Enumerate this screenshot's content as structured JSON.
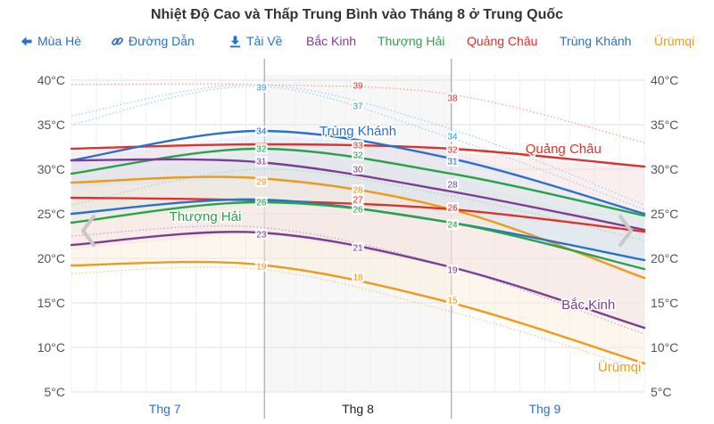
{
  "chart_data": {
    "type": "line",
    "title": "Nhiệt Độ Cao và Thấp Trung Bình vào Tháng 8 ở Trung Quốc",
    "y_unit": "°C",
    "ylim": [
      5,
      41
    ],
    "y_ticks": [
      5,
      10,
      15,
      20,
      25,
      30,
      35,
      40
    ],
    "y_tick_labels": [
      "5°C",
      "10°C",
      "15°C",
      "20°C",
      "25°C",
      "30°C",
      "35°C",
      "40°C"
    ],
    "x_range": [
      0,
      92
    ],
    "months": [
      {
        "label": "Thg 7",
        "center": 15,
        "highlight": false
      },
      {
        "label": "Thg 8",
        "center": 46,
        "highlight": true
      },
      {
        "label": "Thg 9",
        "center": 76,
        "highlight": false
      }
    ],
    "boundaries": [
      31,
      61
    ],
    "bands": [
      {
        "name": "Bắc Kinh",
        "color": "#ead8ea",
        "x": [
          0,
          30,
          61,
          92
        ],
        "high": [
          31,
          31,
          29,
          23
        ],
        "low": [
          21,
          23,
          19,
          12
        ]
      },
      {
        "name": "Quảng Châu",
        "color": "#f6dada",
        "x": [
          0,
          30,
          61,
          92
        ],
        "high": [
          32,
          33,
          32,
          30
        ],
        "low": [
          25,
          27,
          26,
          23
        ]
      },
      {
        "name": "Thượng Hải",
        "color": "#dcefdf",
        "x": [
          0,
          30,
          61,
          92
        ],
        "high": [
          29,
          32,
          30,
          25
        ],
        "low": [
          24,
          26,
          25,
          19
        ]
      },
      {
        "name": "Trùng Khánh",
        "color": "#dbe5f4",
        "x": [
          0,
          30,
          61,
          92
        ],
        "high": [
          31,
          34,
          32,
          25
        ],
        "low": [
          25,
          27,
          24,
          20
        ]
      },
      {
        "name": "Ürümqi",
        "color": "#faecd6",
        "x": [
          0,
          30,
          61,
          92
        ],
        "high": [
          28,
          29,
          26,
          18
        ],
        "low": [
          19,
          20,
          15,
          8
        ]
      }
    ],
    "records": [
      {
        "name": "Ürümqi record high",
        "color": "#f4a0a0",
        "x": [
          0,
          30,
          61,
          92
        ],
        "y": [
          39.5,
          39.5,
          38.4,
          33
        ]
      },
      {
        "name": "Trùng Khánh record high",
        "color": "#9fd3ee",
        "x": [
          0,
          30,
          61,
          92
        ],
        "y": [
          36,
          39.5,
          34.5,
          26
        ]
      },
      {
        "name": "Trùng Khánh record high 2",
        "color": "#9fd3ee",
        "x": [
          0,
          30,
          61,
          92
        ],
        "y": [
          35,
          39.3,
          33.5,
          25.5
        ]
      },
      {
        "name": "Thượng Hải record",
        "color": "#a7dab0",
        "x": [
          0,
          30,
          61,
          92
        ],
        "y": [
          26,
          30,
          27,
          22
        ]
      },
      {
        "name": "Ürümqi record low",
        "color": "#f7c98a",
        "x": [
          0,
          30,
          61,
          92
        ],
        "y": [
          18.3,
          18.8,
          14,
          7.5
        ]
      },
      {
        "name": "Bắc Kinh record low",
        "color": "#c6a6d0",
        "x": [
          0,
          30,
          61,
          92
        ],
        "y": [
          22.5,
          23.5,
          19,
          11.5
        ]
      }
    ],
    "series": [
      {
        "name": "Quảng Châu high",
        "color": "#e0312c",
        "x": [
          0,
          30,
          61,
          92
        ],
        "y": [
          32.3,
          32.8,
          32.3,
          30.3
        ]
      },
      {
        "name": "Trùng Khánh high",
        "color": "#2970cf",
        "x": [
          0,
          30,
          61,
          92
        ],
        "y": [
          31,
          34.3,
          31.2,
          25
        ]
      },
      {
        "name": "Thượng Hải high",
        "color": "#2aa24c",
        "x": [
          0,
          30,
          61,
          92
        ],
        "y": [
          29.5,
          32.3,
          29.5,
          24.8
        ]
      },
      {
        "name": "Bắc Kinh high",
        "color": "#7a3f93",
        "x": [
          0,
          30,
          61,
          92
        ],
        "y": [
          31,
          30.8,
          27.5,
          23.2
        ]
      },
      {
        "name": "Ürümqi high",
        "color": "#ef9a1b",
        "x": [
          0,
          30,
          61,
          92
        ],
        "y": [
          28.5,
          29,
          25.5,
          17.8
        ]
      },
      {
        "name": "Quảng Châu low",
        "color": "#e0312c",
        "x": [
          0,
          30,
          61,
          92
        ],
        "y": [
          26.8,
          26.5,
          25.5,
          23
        ]
      },
      {
        "name": "Trùng Khánh low",
        "color": "#2970cf",
        "x": [
          0,
          30,
          61,
          92
        ],
        "y": [
          25,
          26.6,
          24,
          19.8
        ]
      },
      {
        "name": "Thượng Hải low",
        "color": "#2aa24c",
        "x": [
          0,
          30,
          61,
          92
        ],
        "y": [
          24,
          26.3,
          24,
          18.8
        ]
      },
      {
        "name": "Bắc Kinh low",
        "color": "#7a3f93",
        "x": [
          0,
          30,
          61,
          92
        ],
        "y": [
          21.5,
          22.9,
          19,
          12.2
        ]
      },
      {
        "name": "Ürümqi low",
        "color": "#ef9a1b",
        "x": [
          0,
          30,
          61,
          92
        ],
        "y": [
          19.2,
          19.3,
          15,
          8.2
        ]
      }
    ],
    "point_labels": [
      {
        "text": "39",
        "color": "#2e9fc8",
        "x": 30.5,
        "y": 39.2
      },
      {
        "text": "34",
        "color": "#2970cf",
        "x": 30.5,
        "y": 34.3
      },
      {
        "text": "32",
        "color": "#2aa24c",
        "x": 30.5,
        "y": 32.3
      },
      {
        "text": "31",
        "color": "#7a3f93",
        "x": 30.5,
        "y": 30.9
      },
      {
        "text": "29",
        "color": "#ef9a1b",
        "x": 30.5,
        "y": 28.6
      },
      {
        "text": "26",
        "color": "#2aa24c",
        "x": 30.5,
        "y": 26.3
      },
      {
        "text": "23",
        "color": "#7a3f93",
        "x": 30.5,
        "y": 22.7
      },
      {
        "text": "19",
        "color": "#ef9a1b",
        "x": 30.5,
        "y": 19.1
      },
      {
        "text": "39",
        "color": "#e0312c",
        "x": 46,
        "y": 39.4
      },
      {
        "text": "37",
        "color": "#2e9fc8",
        "x": 46,
        "y": 37.1
      },
      {
        "text": "33",
        "color": "#e0312c",
        "x": 46,
        "y": 32.7
      },
      {
        "text": "32",
        "color": "#2aa24c",
        "x": 46,
        "y": 31.6
      },
      {
        "text": "30",
        "color": "#7a3f93",
        "x": 46,
        "y": 30
      },
      {
        "text": "28",
        "color": "#ef9a1b",
        "x": 46,
        "y": 27.7
      },
      {
        "text": "27",
        "color": "#e0312c",
        "x": 46,
        "y": 26.6
      },
      {
        "text": "26",
        "color": "#2aa24c",
        "x": 46,
        "y": 25.5
      },
      {
        "text": "21",
        "color": "#7a3f93",
        "x": 46,
        "y": 21.2
      },
      {
        "text": "18",
        "color": "#ef9a1b",
        "x": 46,
        "y": 17.9
      },
      {
        "text": "38",
        "color": "#e0312c",
        "x": 61.2,
        "y": 38
      },
      {
        "text": "34",
        "color": "#2e9fc8",
        "x": 61.2,
        "y": 33.7
      },
      {
        "text": "32",
        "color": "#e0312c",
        "x": 61.2,
        "y": 32.2
      },
      {
        "text": "31",
        "color": "#2970cf",
        "x": 61.2,
        "y": 30.9
      },
      {
        "text": "28",
        "color": "#7a3f93",
        "x": 61.2,
        "y": 28.3
      },
      {
        "text": "26",
        "color": "#e0312c",
        "x": 61.2,
        "y": 25.7
      },
      {
        "text": "24",
        "color": "#2aa24c",
        "x": 61.2,
        "y": 23.8
      },
      {
        "text": "19",
        "color": "#7a3f93",
        "x": 61.2,
        "y": 18.7
      },
      {
        "text": "15",
        "color": "#ef9a1b",
        "x": 61.2,
        "y": 15.3
      }
    ],
    "line_labels": [
      {
        "text": "Trùng Khánh",
        "color": "#2970cf",
        "x": 46,
        "y": 34.3
      },
      {
        "text": "Quảng Châu",
        "color": "#e0312c",
        "x": 79,
        "y": 32.3
      },
      {
        "text": "Thượng Hải",
        "color": "#2aa24c",
        "x": 21.5,
        "y": 24.7
      },
      {
        "text": "Bắc Kinh",
        "color": "#7a3f93",
        "x": 83,
        "y": 14.8
      },
      {
        "text": "Ürümqi",
        "color": "#ef9a1b",
        "x": 88,
        "y": 7.8
      }
    ]
  },
  "toolbar": {
    "summer": "Mùa Hè",
    "link": "Đường Dẫn",
    "download": "Tải Về",
    "legend": [
      {
        "label": "Bắc Kinh",
        "color": "#7a3f93"
      },
      {
        "label": "Thượng Hải",
        "color": "#2aa24c"
      },
      {
        "label": "Quảng Châu",
        "color": "#e0312c"
      },
      {
        "label": "Trùng Khánh",
        "color": "#2970cf"
      },
      {
        "label": "Ürümqi",
        "color": "#ef9a1b"
      }
    ],
    "link_color": "#2970cf"
  }
}
